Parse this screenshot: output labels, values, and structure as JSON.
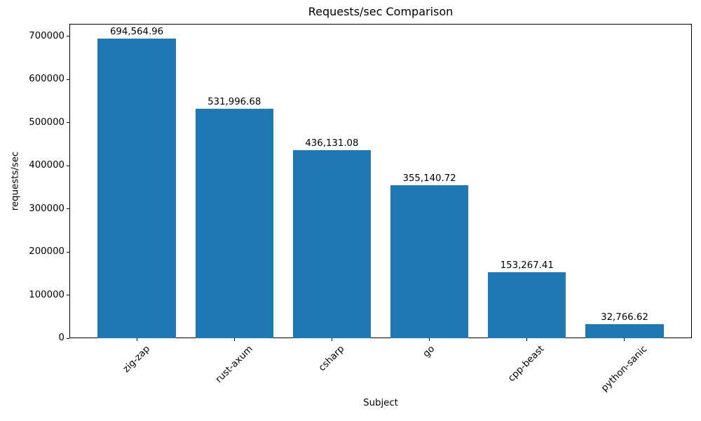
{
  "chart_data": {
    "type": "bar",
    "title": "Requests/sec Comparison",
    "xlabel": "Subject",
    "ylabel": "requests/sec",
    "categories": [
      "zig-zap",
      "rust-axum",
      "csharp",
      "go",
      "cpp-beast",
      "python-sanic"
    ],
    "values": [
      694564.96,
      531996.68,
      436131.08,
      355140.72,
      153267.41,
      32766.62
    ],
    "value_labels": [
      "694,564.96",
      "531,996.68",
      "436,131.08",
      "355,140.72",
      "153,267.41",
      "32,766.62"
    ],
    "yticks": [
      0,
      100000,
      200000,
      300000,
      400000,
      500000,
      600000,
      700000
    ],
    "ylim": [
      0,
      729293
    ],
    "bar_color": "#1f77b4",
    "axis_color": "#000000",
    "text_color": "#000000",
    "grid": false,
    "legend": "none",
    "xtick_rotation": 45
  }
}
